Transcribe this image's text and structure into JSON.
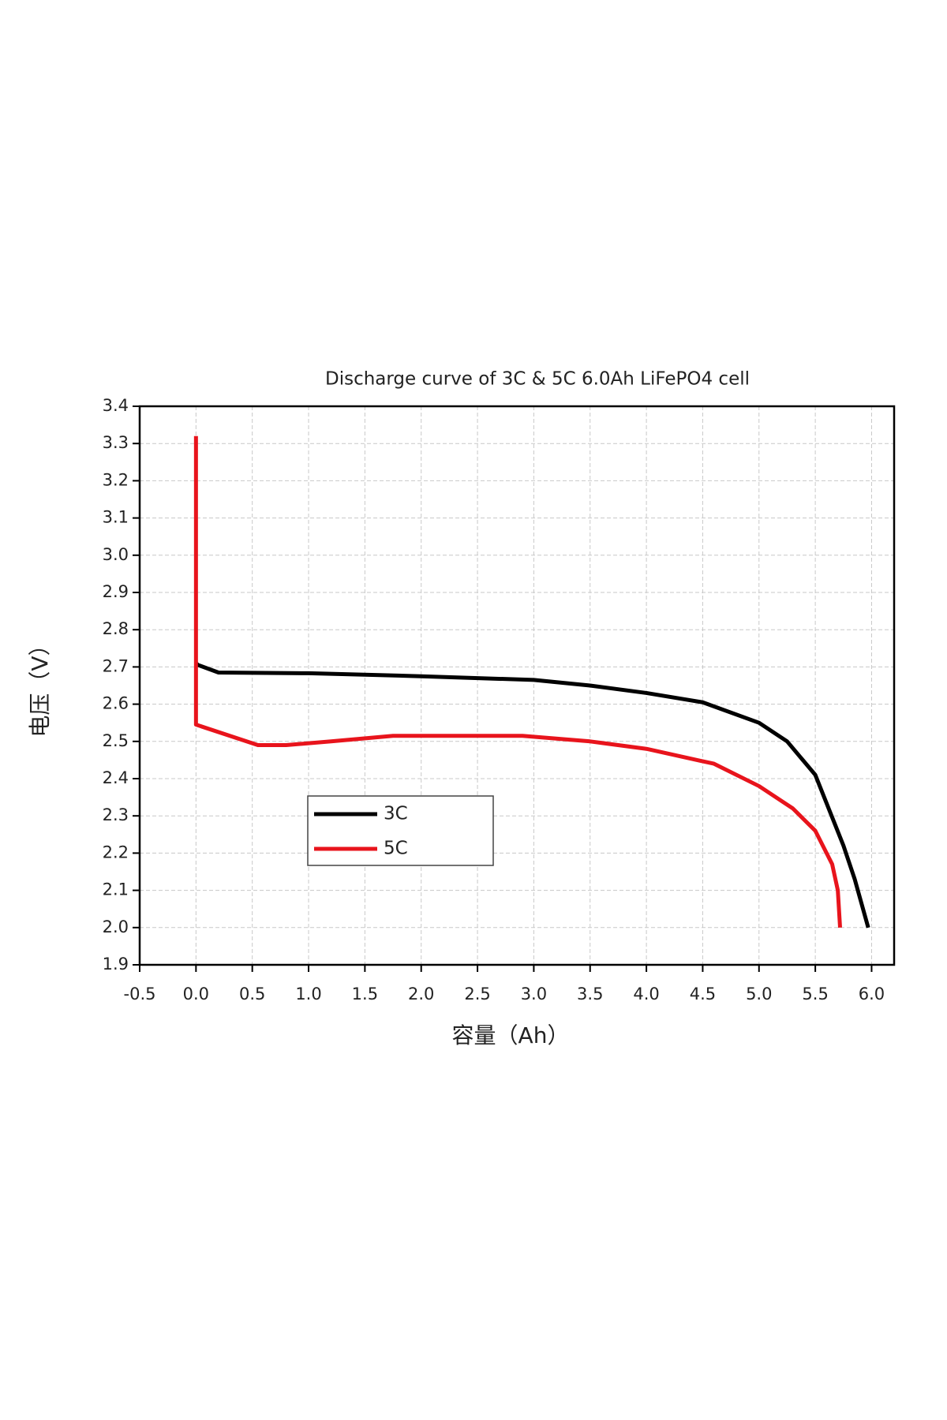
{
  "chart_data": {
    "type": "line",
    "title": "Discharge curve of 3C & 5C 6.0Ah LiFePO4 cell",
    "x_label": "容量（Ah）",
    "y_label": "电压（V）",
    "xlim": [
      -0.5,
      6.2
    ],
    "xticks": [
      -0.5,
      0.0,
      0.5,
      1.0,
      1.5,
      2.0,
      2.5,
      3.0,
      3.5,
      4.0,
      4.5,
      5.0,
      5.5,
      6.0
    ],
    "ylim": [
      1.9,
      3.4
    ],
    "yticks": [
      1.9,
      2.0,
      2.1,
      2.2,
      2.3,
      2.4,
      2.5,
      2.6,
      2.7,
      2.8,
      2.9,
      3.0,
      3.1,
      3.2,
      3.3,
      3.4
    ],
    "grid": true,
    "series": [
      {
        "name": "3C",
        "color": "#000000",
        "x": [
          0,
          0.02,
          0.2,
          1,
          2,
          3,
          3.5,
          4,
          4.5,
          5,
          5.25,
          5.5,
          5.75,
          5.85,
          5.97
        ],
        "values": [
          2.71,
          2.705,
          2.685,
          2.683,
          2.675,
          2.665,
          2.65,
          2.63,
          2.605,
          2.55,
          2.5,
          2.41,
          2.22,
          2.13,
          2.0
        ]
      },
      {
        "name": "5C",
        "color": "#e8141c",
        "x": [
          0,
          0,
          0.55,
          0.8,
          1.2,
          1.75,
          2.5,
          2.9,
          3.5,
          4,
          4.6,
          5,
          5.3,
          5.5,
          5.65,
          5.7,
          5.72
        ],
        "values": [
          3.32,
          2.545,
          2.49,
          2.49,
          2.5,
          2.515,
          2.515,
          2.515,
          2.5,
          2.48,
          2.44,
          2.38,
          2.32,
          2.26,
          2.17,
          2.1,
          2.0
        ]
      }
    ]
  }
}
